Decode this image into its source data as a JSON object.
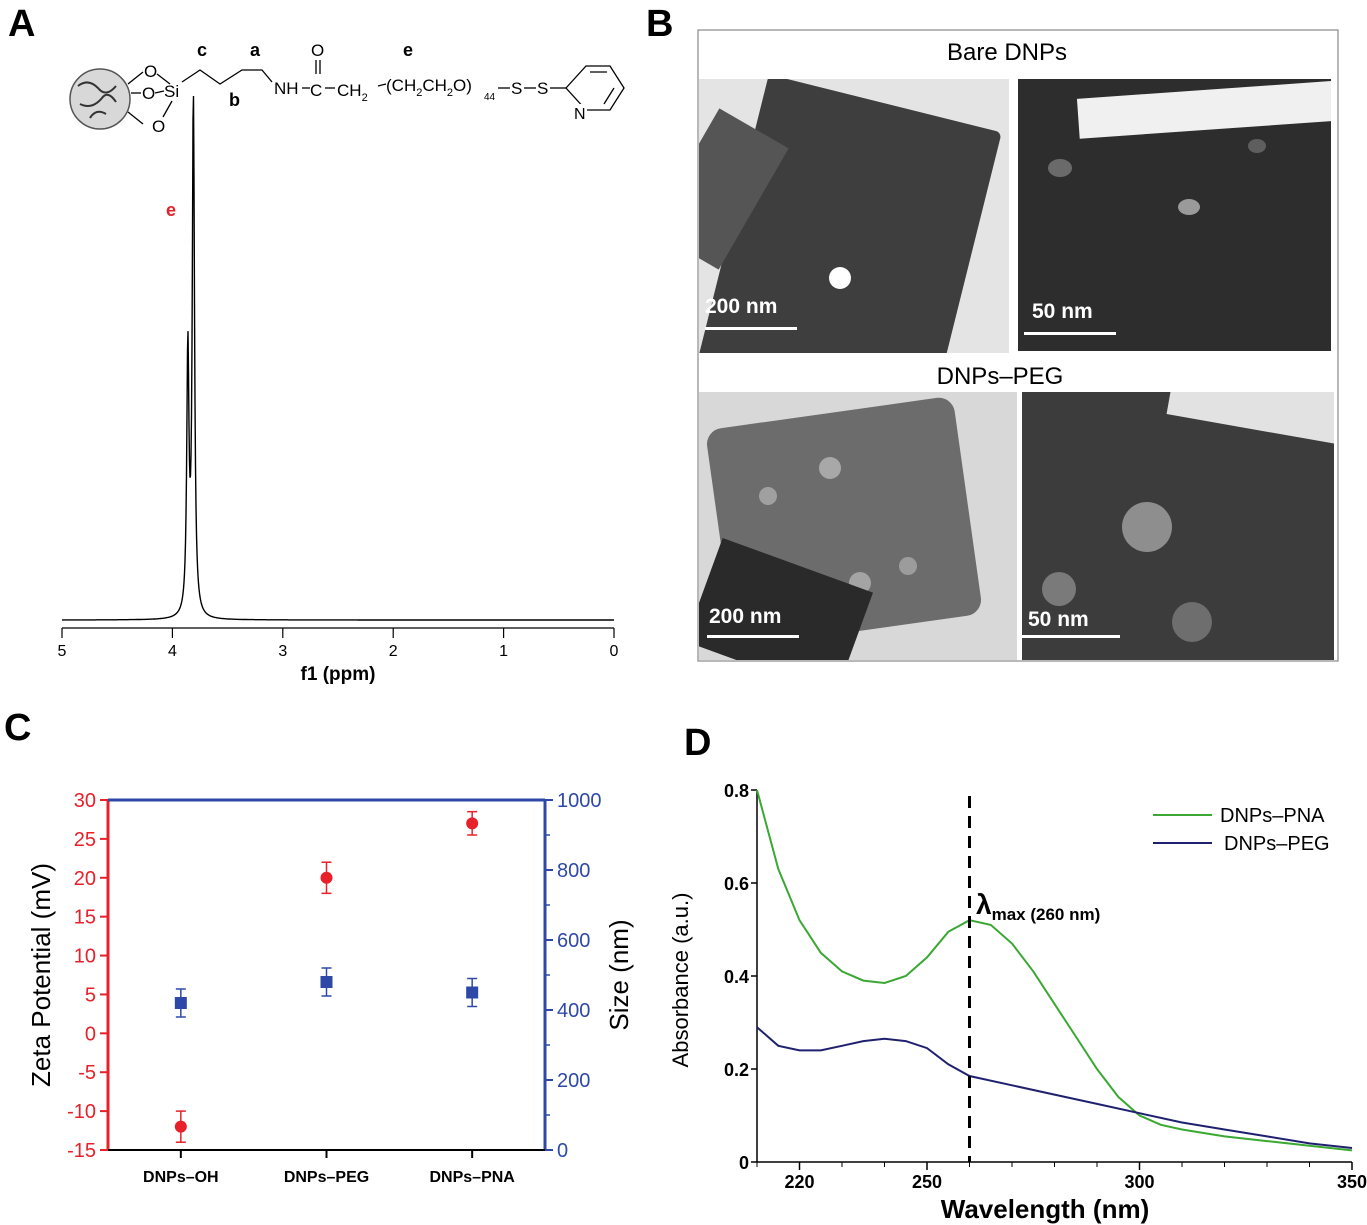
{
  "panel_labels": {
    "a": "A",
    "b": "B",
    "c": "C",
    "d": "D"
  },
  "colors": {
    "red_axis": "#e8202a",
    "blue_axis": "#2e48a8",
    "pna_line": "#3aa832",
    "peg_line": "#1f2170",
    "black": "#000000"
  },
  "panel_a": {
    "structure": {
      "c": "c",
      "a": "a",
      "e": "e",
      "b": "b",
      "oxygen_1": "O",
      "oxygen_2": "O",
      "oxygen_3": "O",
      "si": "Si",
      "nh": "NH",
      "carbonyl_c": "C",
      "carbonyl_o": "O",
      "ch2": "CH",
      "ch2_sub": "2",
      "peg_open": "(CH",
      "peg_sub1": "2",
      "peg_mid": "CH",
      "peg_sub2": "2",
      "peg_close": "O)",
      "peg_n": "44",
      "s1": "S",
      "s2": "S",
      "n": "N"
    },
    "peak_label": "e"
  },
  "panel_b": {
    "bare_title": "Bare DNPs",
    "peg_title": "DNPs–PEG",
    "scale_200": "200 nm",
    "scale_50": "50 nm"
  },
  "chart_data": [
    {
      "type": "line",
      "panel": "A",
      "xlabel": "f1 (ppm)",
      "ylabel": "",
      "xlim": [
        5,
        0
      ],
      "x_ticks": [
        "5",
        "4",
        "3",
        "2",
        "1",
        "0"
      ],
      "peaks": [
        {
          "x": 3.81,
          "relative_height": 1.0,
          "label": "e"
        },
        {
          "x": 3.86,
          "relative_height": 0.5
        }
      ],
      "grid": false
    },
    {
      "type": "scatter",
      "panel": "C",
      "categories": [
        "DNPs–OH",
        "DNPs–PEG",
        "DNPs–PNA"
      ],
      "series": [
        {
          "values": [
            -12,
            20,
            27
          ],
          "errors": [
            2,
            2,
            1.5
          ],
          "axis": "left",
          "marker": "circle"
        },
        {
          "values": [
            420,
            480,
            450
          ],
          "errors": [
            40,
            40,
            40
          ],
          "axis": "right",
          "marker": "square"
        }
      ],
      "ylabel_left": "Zeta Potential (mV)",
      "ylabel_right": "Size (nm)",
      "ylim_left": [
        -15,
        30
      ],
      "ylim_right": [
        0,
        1000
      ],
      "y_ticks_left": [
        "30",
        "25",
        "20",
        "15",
        "10",
        "5",
        "0",
        "-5",
        "-10",
        "-15"
      ],
      "y_ticks_right": [
        "1000",
        "800",
        "600",
        "400",
        "200",
        "0"
      ],
      "grid": false
    },
    {
      "type": "line",
      "panel": "D",
      "xlabel": "Wavelength (nm)",
      "ylabel": "Absorbance (a.u.)",
      "xlim": [
        210,
        350
      ],
      "ylim": [
        0,
        0.8
      ],
      "x_ticks": [
        "220",
        "250",
        "300",
        "350"
      ],
      "y_ticks": [
        "0.8",
        "0.6",
        "0.4",
        "0.2",
        "0"
      ],
      "annotation": {
        "symbol": "λ",
        "sub": "max (260 nm)",
        "x": 260
      },
      "legend_position": "top-right",
      "series": [
        {
          "name": "DNPs–PNA",
          "x": [
            210,
            215,
            220,
            225,
            230,
            235,
            240,
            245,
            250,
            255,
            260,
            265,
            270,
            275,
            280,
            285,
            290,
            295,
            300,
            305,
            310,
            320,
            330,
            340,
            350
          ],
          "y": [
            0.8,
            0.63,
            0.52,
            0.45,
            0.41,
            0.39,
            0.385,
            0.4,
            0.44,
            0.495,
            0.52,
            0.51,
            0.47,
            0.41,
            0.34,
            0.27,
            0.2,
            0.14,
            0.1,
            0.08,
            0.07,
            0.055,
            0.045,
            0.035,
            0.025
          ]
        },
        {
          "name": "DNPs–PEG",
          "x": [
            210,
            215,
            220,
            225,
            230,
            235,
            240,
            245,
            250,
            255,
            260,
            270,
            280,
            290,
            300,
            310,
            320,
            330,
            340,
            350
          ],
          "y": [
            0.29,
            0.25,
            0.24,
            0.24,
            0.25,
            0.26,
            0.265,
            0.26,
            0.245,
            0.21,
            0.185,
            0.165,
            0.145,
            0.125,
            0.105,
            0.085,
            0.07,
            0.055,
            0.04,
            0.03
          ]
        }
      ],
      "grid": false
    }
  ]
}
